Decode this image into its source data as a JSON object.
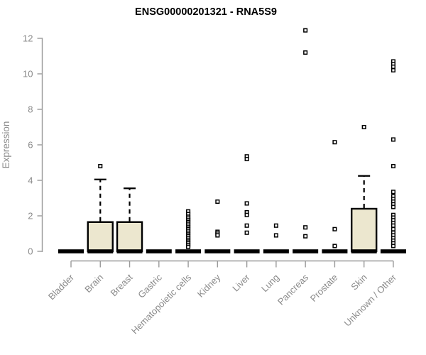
{
  "chart_data": {
    "type": "boxplot",
    "title": "ENSG00000201321 - RNA5S9",
    "ylabel": "Expression",
    "xlabel": "",
    "ylim": [
      0,
      12.6
    ],
    "yticks": [
      0,
      2,
      4,
      6,
      8,
      10,
      12
    ],
    "grid": false,
    "legend": false,
    "box_fill": "#ece7cf",
    "axis_color": "#9a9a9a",
    "label_color": "#8a8a8a",
    "categories": [
      {
        "label": "Bladder",
        "median": 0,
        "box": null,
        "whisker_high": null,
        "outliers": []
      },
      {
        "label": "Brain",
        "median": 0,
        "box": [
          0,
          1.65
        ],
        "whisker_high": 4.05,
        "outliers": [
          4.8
        ]
      },
      {
        "label": "Breast",
        "median": 0,
        "box": [
          0,
          1.65
        ],
        "whisker_high": 3.55,
        "outliers": []
      },
      {
        "label": "Gastric",
        "median": 0,
        "box": null,
        "whisker_high": null,
        "outliers": []
      },
      {
        "label": "Hematopoietic cells",
        "median": 0,
        "box": null,
        "whisker_high": null,
        "outliers": [
          2.25,
          2.1,
          1.95,
          1.85,
          1.75,
          1.65,
          1.55,
          1.45,
          1.35,
          1.25,
          1.15,
          1.05,
          0.95,
          0.85,
          0.75,
          0.65,
          0.55,
          0.45,
          0.35,
          0.25
        ]
      },
      {
        "label": "Kidney",
        "median": 0,
        "box": null,
        "whisker_high": null,
        "outliers": [
          2.8,
          1.1,
          1.0,
          0.9
        ]
      },
      {
        "label": "Liver",
        "median": 0,
        "box": null,
        "whisker_high": null,
        "outliers": [
          5.35,
          5.2,
          2.7,
          2.2,
          2.05,
          1.45,
          1.05
        ]
      },
      {
        "label": "Lung",
        "median": 0,
        "box": null,
        "whisker_high": null,
        "outliers": [
          1.45,
          0.9
        ]
      },
      {
        "label": "Pancreas",
        "median": 0,
        "box": null,
        "whisker_high": null,
        "outliers": [
          12.45,
          11.2,
          1.35,
          0.85
        ]
      },
      {
        "label": "Prostate",
        "median": 0,
        "box": null,
        "whisker_high": null,
        "outliers": [
          6.15,
          1.25,
          0.3
        ]
      },
      {
        "label": "Skin",
        "median": 0,
        "box": [
          0,
          2.4
        ],
        "whisker_high": 4.25,
        "outliers": [
          7.0
        ]
      },
      {
        "label": "Unknown / Other",
        "median": 0,
        "box": null,
        "whisker_high": null,
        "outliers": [
          10.7,
          10.55,
          10.4,
          10.2,
          6.3,
          4.8,
          3.35,
          3.1,
          2.95,
          2.8,
          2.65,
          2.5,
          2.05,
          1.9,
          1.75,
          1.6,
          1.45,
          1.25,
          1.05,
          0.9,
          0.75,
          0.6,
          0.45,
          0.3
        ]
      }
    ]
  }
}
